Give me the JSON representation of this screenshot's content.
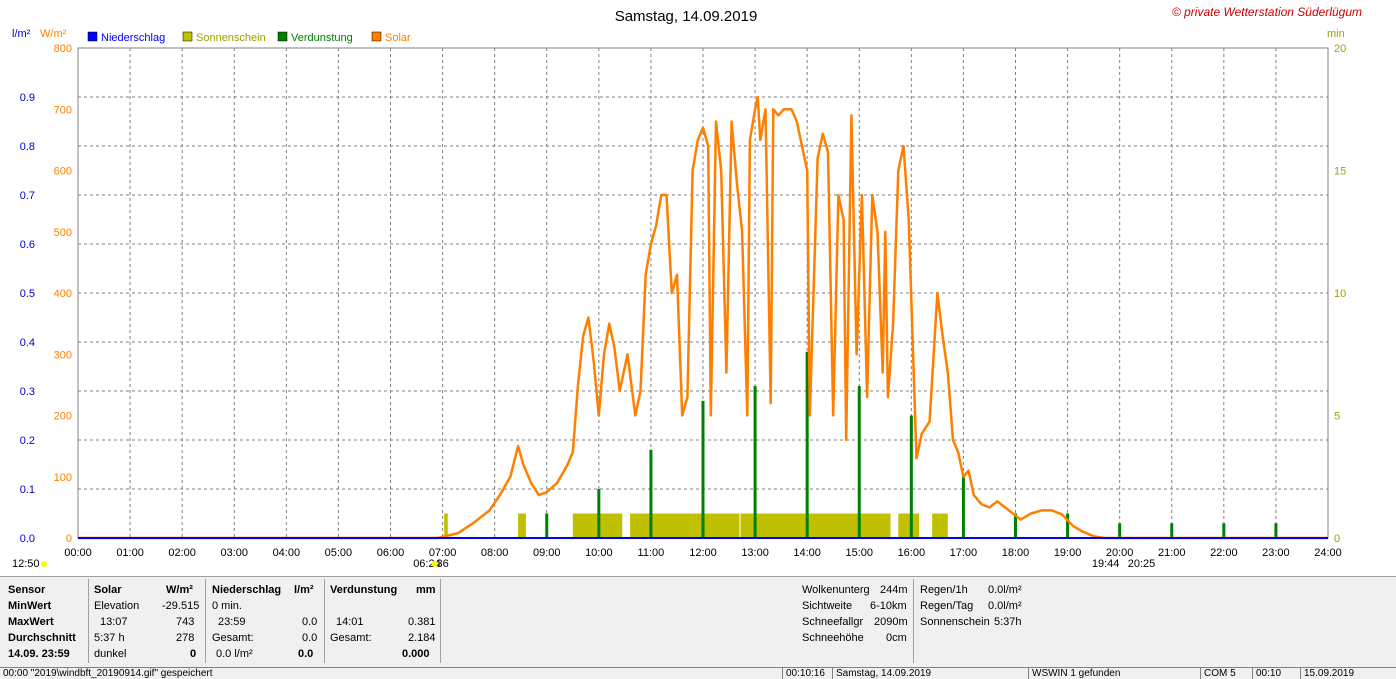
{
  "chart_data": {
    "type": "bar",
    "title": "Samstag, 14.09.2019",
    "copyright": "© private Wetterstation Süderlügum",
    "y_left_unit": "l/m²",
    "y_solar_unit": "W/m²",
    "y_right_unit": "min",
    "ylim_precip": [
      0,
      1.0
    ],
    "ylim_solar": [
      0,
      800
    ],
    "ylim_sun": [
      0,
      20
    ],
    "yticks_precip": [
      "0.0",
      "0.1",
      "0.2",
      "0.3",
      "0.4",
      "0.5",
      "0.6",
      "0.7",
      "0.8",
      "0.9"
    ],
    "yticks_solar": [
      "0",
      "100",
      "200",
      "300",
      "400",
      "500",
      "600",
      "700",
      "800"
    ],
    "yticks_sun": [
      "0",
      "5",
      "10",
      "15",
      "20"
    ],
    "xticks": [
      "00:00",
      "01:00",
      "02:00",
      "03:00",
      "04:00",
      "05:00",
      "06:00",
      "07:00",
      "08:00",
      "09:00",
      "10:00",
      "11:00",
      "12:00",
      "13:00",
      "14:00",
      "15:00",
      "16:00",
      "17:00",
      "18:00",
      "19:00",
      "20:00",
      "21:00",
      "22:00",
      "23:00",
      "24:00"
    ],
    "legend": [
      {
        "name": "Niederschlag",
        "color": "#0000ff"
      },
      {
        "name": "Sonnenschein",
        "color": "#c0c000"
      },
      {
        "name": "Verdunstung",
        "color": "#008000"
      },
      {
        "name": "Solar",
        "color": "#ff8000"
      }
    ],
    "markers": [
      {
        "label": "12:50",
        "hour": 0
      },
      {
        "label": "06:24",
        "hour": 6.7
      },
      {
        "label": "36",
        "hour": 7.0
      },
      {
        "label": "19:44",
        "hour": 19.73
      },
      {
        "label": "20:25",
        "hour": 20.42
      }
    ],
    "sunshine_blocks": [
      {
        "start": 7.03,
        "end": 7.1,
        "value": 1
      },
      {
        "start": 8.45,
        "end": 8.6,
        "value": 1
      },
      {
        "start": 9.5,
        "end": 10.45,
        "value": 1
      },
      {
        "start": 10.6,
        "end": 11.8,
        "value": 1
      },
      {
        "start": 11.8,
        "end": 12.7,
        "value": 1
      },
      {
        "start": 12.72,
        "end": 15.6,
        "value": 1
      },
      {
        "start": 15.75,
        "end": 16.15,
        "value": 1
      },
      {
        "start": 16.4,
        "end": 16.7,
        "value": 1
      }
    ],
    "evaporation": [
      {
        "hour": 9.0,
        "value": 0.05
      },
      {
        "hour": 10.0,
        "value": 0.1
      },
      {
        "hour": 11.0,
        "value": 0.18
      },
      {
        "hour": 12.0,
        "value": 0.28
      },
      {
        "hour": 13.0,
        "value": 0.31
      },
      {
        "hour": 14.0,
        "value": 0.38
      },
      {
        "hour": 15.0,
        "value": 0.31
      },
      {
        "hour": 16.0,
        "value": 0.25
      },
      {
        "hour": 17.0,
        "value": 0.13
      },
      {
        "hour": 18.0,
        "value": 0.05
      },
      {
        "hour": 19.0,
        "value": 0.05
      },
      {
        "hour": 20.0,
        "value": 0.03
      },
      {
        "hour": 21.0,
        "value": 0.03
      },
      {
        "hour": 22.0,
        "value": 0.03
      },
      {
        "hour": 23.0,
        "value": 0.03
      }
    ],
    "solar": [
      [
        0,
        0
      ],
      [
        6.9,
        0
      ],
      [
        7.0,
        2
      ],
      [
        7.3,
        8
      ],
      [
        7.6,
        25
      ],
      [
        7.9,
        45
      ],
      [
        8.1,
        70
      ],
      [
        8.3,
        100
      ],
      [
        8.45,
        150
      ],
      [
        8.55,
        120
      ],
      [
        8.7,
        90
      ],
      [
        8.85,
        70
      ],
      [
        9.0,
        75
      ],
      [
        9.2,
        90
      ],
      [
        9.4,
        120
      ],
      [
        9.5,
        140
      ],
      [
        9.6,
        250
      ],
      [
        9.7,
        330
      ],
      [
        9.8,
        360
      ],
      [
        9.9,
        290
      ],
      [
        10.0,
        200
      ],
      [
        10.1,
        300
      ],
      [
        10.2,
        350
      ],
      [
        10.3,
        310
      ],
      [
        10.4,
        240
      ],
      [
        10.55,
        300
      ],
      [
        10.7,
        200
      ],
      [
        10.8,
        240
      ],
      [
        10.9,
        430
      ],
      [
        11.0,
        480
      ],
      [
        11.1,
        510
      ],
      [
        11.2,
        560
      ],
      [
        11.3,
        560
      ],
      [
        11.4,
        400
      ],
      [
        11.5,
        430
      ],
      [
        11.6,
        200
      ],
      [
        11.7,
        230
      ],
      [
        11.8,
        600
      ],
      [
        11.9,
        650
      ],
      [
        12.0,
        670
      ],
      [
        12.1,
        640
      ],
      [
        12.15,
        200
      ],
      [
        12.25,
        680
      ],
      [
        12.35,
        600
      ],
      [
        12.45,
        270
      ],
      [
        12.55,
        680
      ],
      [
        12.65,
        580
      ],
      [
        12.75,
        500
      ],
      [
        12.85,
        200
      ],
      [
        12.9,
        650
      ],
      [
        13.0,
        700
      ],
      [
        13.05,
        720
      ],
      [
        13.1,
        650
      ],
      [
        13.2,
        700
      ],
      [
        13.3,
        220
      ],
      [
        13.35,
        700
      ],
      [
        13.45,
        690
      ],
      [
        13.55,
        700
      ],
      [
        13.7,
        700
      ],
      [
        13.8,
        680
      ],
      [
        14.0,
        600
      ],
      [
        14.05,
        200
      ],
      [
        14.2,
        620
      ],
      [
        14.3,
        660
      ],
      [
        14.4,
        630
      ],
      [
        14.5,
        200
      ],
      [
        14.6,
        560
      ],
      [
        14.7,
        520
      ],
      [
        14.75,
        160
      ],
      [
        14.85,
        690
      ],
      [
        14.95,
        300
      ],
      [
        15.05,
        560
      ],
      [
        15.15,
        230
      ],
      [
        15.25,
        560
      ],
      [
        15.35,
        500
      ],
      [
        15.45,
        270
      ],
      [
        15.5,
        500
      ],
      [
        15.55,
        230
      ],
      [
        15.65,
        350
      ],
      [
        15.75,
        600
      ],
      [
        15.85,
        640
      ],
      [
        15.95,
        520
      ],
      [
        16.1,
        130
      ],
      [
        16.2,
        170
      ],
      [
        16.35,
        190
      ],
      [
        16.5,
        400
      ],
      [
        16.6,
        330
      ],
      [
        16.7,
        270
      ],
      [
        16.8,
        160
      ],
      [
        16.9,
        140
      ],
      [
        17.0,
        100
      ],
      [
        17.1,
        110
      ],
      [
        17.2,
        70
      ],
      [
        17.35,
        55
      ],
      [
        17.5,
        50
      ],
      [
        17.65,
        60
      ],
      [
        17.8,
        50
      ],
      [
        17.95,
        40
      ],
      [
        18.1,
        30
      ],
      [
        18.3,
        40
      ],
      [
        18.5,
        45
      ],
      [
        18.7,
        45
      ],
      [
        18.9,
        38
      ],
      [
        19.1,
        20
      ],
      [
        19.3,
        10
      ],
      [
        19.5,
        3
      ],
      [
        19.7,
        0
      ],
      [
        24,
        0
      ]
    ]
  },
  "info": {
    "sensor_header": "Sensor",
    "row_labels": [
      "MinWert",
      "MaxWert",
      "Durchschnitt",
      "14.09. 23:59"
    ],
    "solar_header": "Solar",
    "solar_unit": "W/m²",
    "solar_rows": [
      [
        "Elevation",
        "-29.515"
      ],
      [
        "13:07",
        "743"
      ],
      [
        "5:37 h",
        "278"
      ],
      [
        "dunkel",
        "0"
      ]
    ],
    "precip_header": "Niederschlag",
    "precip_unit": "l/m²",
    "precip_rows": [
      [
        "0 min.",
        ""
      ],
      [
        "23:59",
        "0.0"
      ],
      [
        "Gesamt:",
        "0.0"
      ],
      [
        "0.0 l/m²",
        "0.0"
      ]
    ],
    "evap_header": "Verdunstung",
    "evap_unit": "mm",
    "evap_rows": [
      [
        "",
        ""
      ],
      [
        "14:01",
        "0.381"
      ],
      [
        "Gesamt:",
        "2.184"
      ],
      [
        "",
        "0.000"
      ]
    ],
    "weather_rows": [
      [
        "Wolkenunterg",
        "244m"
      ],
      [
        "Sichtweite",
        "6-10km"
      ],
      [
        "Schneefallgr",
        "2090m"
      ],
      [
        "Schneehöhe",
        "0cm"
      ]
    ],
    "rain_rows": [
      [
        "Regen/1h",
        "0.0l/m²"
      ],
      [
        "Regen/Tag",
        "0.0l/m²"
      ],
      [
        "Sonnenschein",
        "5:37h"
      ]
    ]
  },
  "status": {
    "file": "00:00 \"2019\\windbft_20190914.gif\" gespeichert",
    "time": "00:10:16",
    "date": "Samstag, 14.09.2019",
    "found": "WSWIN 1 gefunden",
    "com": "COM 5",
    "clock": "00:10",
    "day": "15.09.2019"
  }
}
